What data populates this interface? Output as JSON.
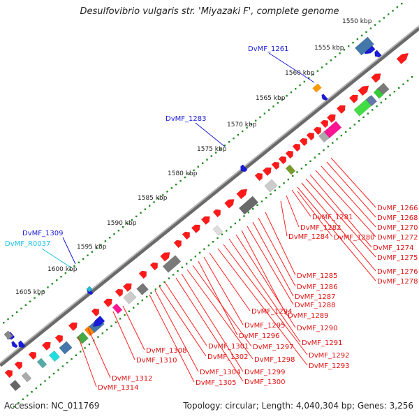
{
  "title": "Desulfovibrio vulgaris str. 'Miyazaki F', complete genome",
  "footer": {
    "accession": "Accession: NC_011769",
    "summary": "Topology: circular; Length: 4,040,304 bp; Genes: 3,256"
  },
  "colors": {
    "forward_gene": "#ff1a1a",
    "reverse_gene": "#1a1ad9",
    "backbone": "#8c8c8c",
    "ticks": "#1f8a1f",
    "rna_label": "#19c0e6"
  },
  "scale_labels": [
    "1550 kbp",
    "1555 kbp",
    "1560 kbp",
    "1565 kbp",
    "1570 kbp",
    "1575 kbp",
    "1580 kbp",
    "1585 kbp",
    "1590 kbp",
    "1595 kbp",
    "1600 kbp",
    "1605 kbp"
  ],
  "outer_labels": [
    {
      "name": "DvMF_1261",
      "color": "#1a1ad9"
    },
    {
      "name": "DvMF_1283",
      "color": "#1a1ad9"
    },
    {
      "name": "DvMF_1309",
      "color": "#1a1ad9"
    },
    {
      "name": "DvMF_R0037",
      "color": "#19c0e6"
    }
  ],
  "inner_labels": [
    "DvMF_1266",
    "DvMF_1268",
    "DvMF_1270",
    "DvMF_1272",
    "DvMF_1274",
    "DvMF_1275",
    "DvMF_1276",
    "DvMF_1278",
    "DvMF_1281",
    "DvMF_1282",
    "DvMF_1284",
    "DvMF_1280",
    "DvMF_1285",
    "DvMF_1286",
    "DvMF_1287",
    "DvMF_1288",
    "DvMF_1289",
    "DvMF_1290",
    "DvMF_1291",
    "DvMF_1292",
    "DvMF_1293",
    "DvMF_1294",
    "DvMF_1295",
    "DvMF_1296",
    "DvMF_1297",
    "DvMF_1298",
    "DvMF_1299",
    "DvMF_1300",
    "DvMF_1301",
    "DvMF_1302",
    "DvMF_1304",
    "DvMF_1305",
    "DvMF_1308",
    "DvMF_1310",
    "DvMF_1312",
    "DvMF_1314"
  ]
}
